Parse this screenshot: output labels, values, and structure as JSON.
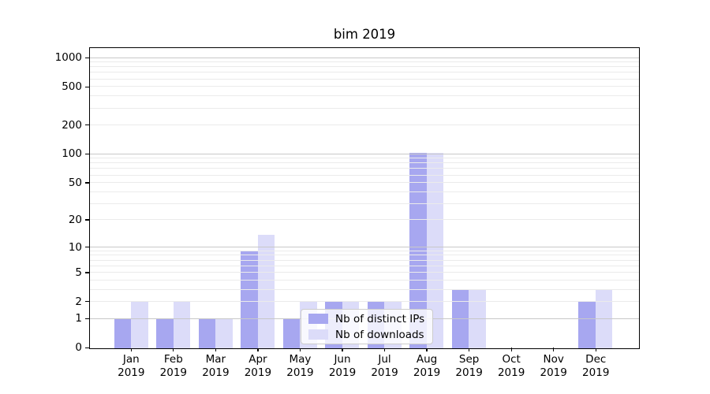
{
  "chart_data": {
    "type": "bar",
    "title": "bim 2019",
    "categories": [
      {
        "month": "Jan",
        "year": "2019"
      },
      {
        "month": "Feb",
        "year": "2019"
      },
      {
        "month": "Mar",
        "year": "2019"
      },
      {
        "month": "Apr",
        "year": "2019"
      },
      {
        "month": "May",
        "year": "2019"
      },
      {
        "month": "Jun",
        "year": "2019"
      },
      {
        "month": "Jul",
        "year": "2019"
      },
      {
        "month": "Aug",
        "year": "2019"
      },
      {
        "month": "Sep",
        "year": "2019"
      },
      {
        "month": "Oct",
        "year": "2019"
      },
      {
        "month": "Nov",
        "year": "2019"
      },
      {
        "month": "Dec",
        "year": "2019"
      }
    ],
    "series": [
      {
        "key": "distinct-ips",
        "name": "Nb of distinct IPs",
        "color": "#a7a7f0",
        "values": [
          1,
          1,
          1,
          9,
          1,
          2,
          2,
          105,
          3,
          0,
          0,
          2
        ]
      },
      {
        "key": "downloads",
        "name": "Nb of downloads",
        "color": "#dcdcf9",
        "values": [
          2,
          2,
          1,
          14,
          2,
          2,
          2,
          105,
          3,
          0,
          0,
          3
        ]
      }
    ],
    "y_axis": {
      "scale": "log1p",
      "ticks": [
        0,
        1,
        2,
        5,
        10,
        20,
        50,
        100,
        200,
        500,
        1000
      ],
      "major_gridlines": [
        1,
        10,
        100,
        1000
      ],
      "minor_gridlines": [
        2,
        3,
        4,
        5,
        6,
        7,
        8,
        9,
        20,
        30,
        40,
        50,
        60,
        70,
        80,
        90,
        200,
        300,
        400,
        500,
        600,
        700,
        800,
        900
      ],
      "range": [
        0,
        1340
      ]
    },
    "legend": {
      "position": "lower-center"
    },
    "colors": {
      "grid_major": "#c8c8c8",
      "grid_minor": "#ebebeb",
      "spine": "#000000",
      "background": "#ffffff",
      "legend_border": "#cccccc",
      "text": "#000000"
    }
  }
}
